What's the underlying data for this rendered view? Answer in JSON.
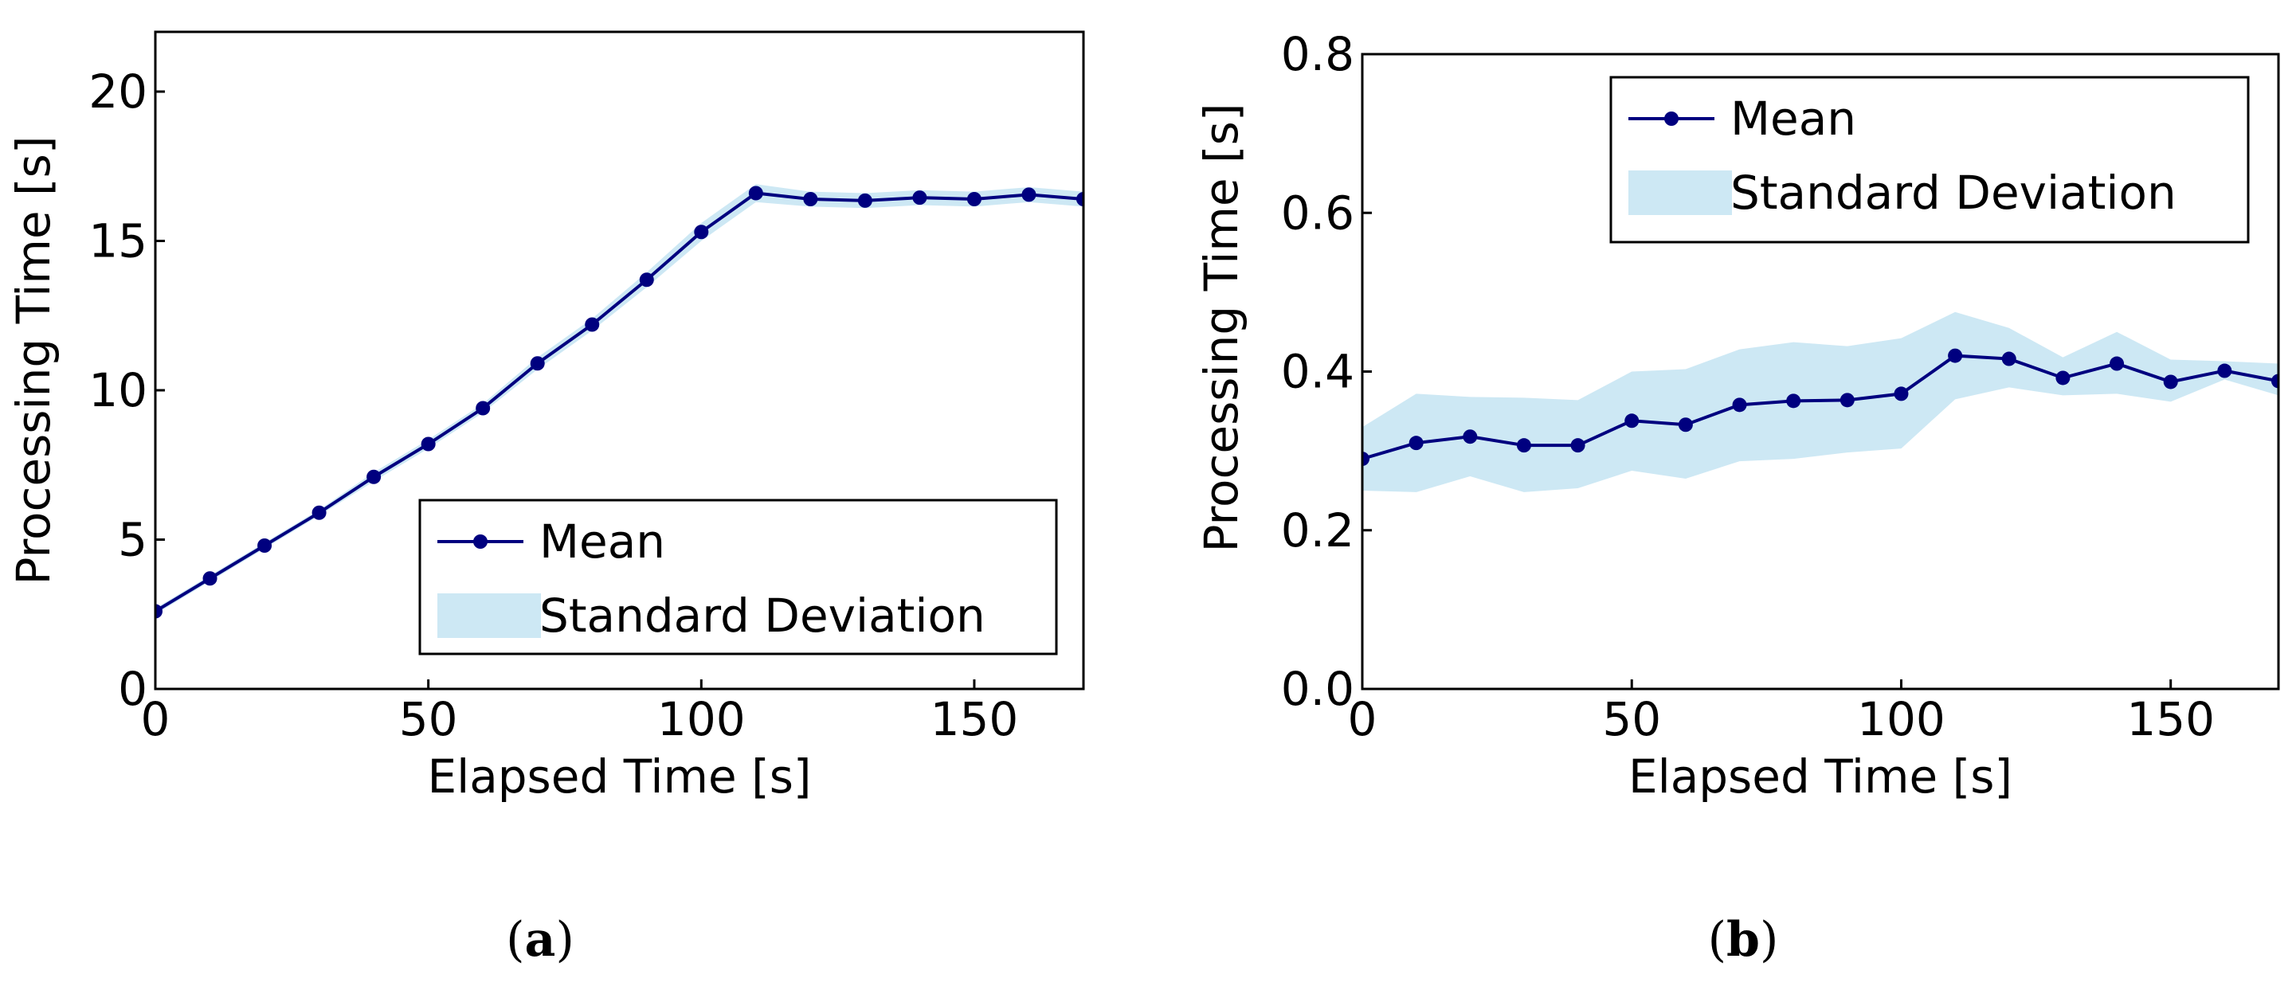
{
  "colors": {
    "mean": "#00007f",
    "band": "#cde8f4",
    "axis": "#000000"
  },
  "chart_data": [
    {
      "type": "line",
      "caption_letter": "a",
      "xlabel": "Elapsed Time [s]",
      "ylabel": "Processing Time [s]",
      "xlim": [
        0,
        170
      ],
      "ylim": [
        0,
        22
      ],
      "xticks": [
        0,
        50,
        100,
        150
      ],
      "yticks": [
        0,
        5,
        10,
        15,
        20
      ],
      "ytick_labels": [
        "0",
        "5",
        "10",
        "15",
        "20"
      ],
      "legend_position": "lower-right",
      "legend": {
        "mean": "Mean",
        "std": "Standard Deviation"
      },
      "x": [
        0,
        10,
        20,
        30,
        40,
        50,
        60,
        70,
        80,
        90,
        100,
        110,
        120,
        130,
        140,
        150,
        160,
        170
      ],
      "series": [
        {
          "name": "Mean",
          "values": [
            2.6,
            3.7,
            4.8,
            5.9,
            7.1,
            8.2,
            9.4,
            10.9,
            12.2,
            13.7,
            15.3,
            16.6,
            16.4,
            16.35,
            16.45,
            16.4,
            16.55,
            16.4
          ]
        },
        {
          "name": "Standard Deviation lower",
          "values": [
            2.5,
            3.6,
            4.7,
            5.8,
            6.95,
            8.05,
            9.25,
            10.7,
            12.0,
            13.45,
            15.0,
            16.3,
            16.15,
            16.1,
            16.2,
            16.15,
            16.3,
            16.15
          ]
        },
        {
          "name": "Standard Deviation upper",
          "values": [
            2.7,
            3.8,
            4.9,
            6.0,
            7.25,
            8.35,
            9.55,
            11.1,
            12.4,
            13.95,
            15.6,
            16.9,
            16.65,
            16.6,
            16.7,
            16.65,
            16.8,
            16.65
          ]
        }
      ]
    },
    {
      "type": "line",
      "caption_letter": "b",
      "xlabel": "Elapsed Time [s]",
      "ylabel": "Processing Time [s]",
      "xlim": [
        0,
        170
      ],
      "ylim": [
        0,
        0.8
      ],
      "xticks": [
        0,
        50,
        100,
        150
      ],
      "yticks": [
        0,
        0.2,
        0.4,
        0.6,
        0.8
      ],
      "ytick_labels": [
        "0.0",
        "0.2",
        "0.4",
        "0.6",
        "0.8"
      ],
      "legend_position": "top-right",
      "legend": {
        "mean": "Mean",
        "std": "Standard Deviation"
      },
      "x": [
        0,
        10,
        20,
        30,
        40,
        50,
        60,
        70,
        80,
        90,
        100,
        110,
        120,
        130,
        140,
        150,
        160,
        170
      ],
      "series": [
        {
          "name": "Mean",
          "values": [
            0.29,
            0.31,
            0.318,
            0.307,
            0.307,
            0.338,
            0.333,
            0.358,
            0.363,
            0.364,
            0.372,
            0.42,
            0.416,
            0.392,
            0.41,
            0.387,
            0.401,
            0.388
          ]
        },
        {
          "name": "Standard Deviation lower",
          "values": [
            0.25,
            0.248,
            0.268,
            0.248,
            0.253,
            0.275,
            0.265,
            0.287,
            0.29,
            0.298,
            0.303,
            0.365,
            0.38,
            0.37,
            0.372,
            0.362,
            0.39,
            0.37
          ]
        },
        {
          "name": "Standard Deviation upper",
          "values": [
            0.33,
            0.372,
            0.368,
            0.367,
            0.364,
            0.4,
            0.403,
            0.428,
            0.437,
            0.432,
            0.442,
            0.475,
            0.455,
            0.418,
            0.45,
            0.415,
            0.413,
            0.41
          ]
        }
      ]
    }
  ]
}
